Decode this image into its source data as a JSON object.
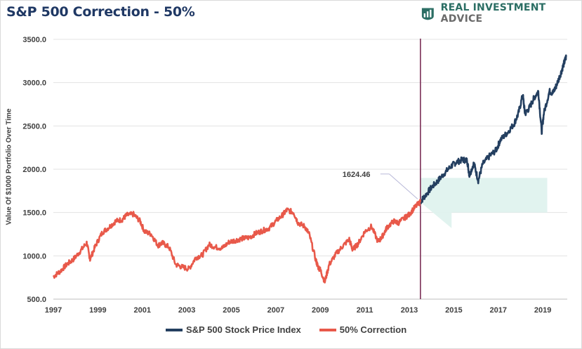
{
  "title": "S&P 500 Correction - 50%",
  "brand": {
    "part1": "REAL INVESTMENT ",
    "part2": "ADVICE",
    "icon": "chart-logo-icon",
    "color": "#2b6e64"
  },
  "chart_data": {
    "type": "line",
    "title": "S&P 500 Correction - 50%",
    "ylabel": "Value Of $1000 Portfolio Over Time",
    "xlabel": "",
    "ylim": [
      500,
      3500
    ],
    "xlim": [
      1997,
      2020.1
    ],
    "yticks": [
      "500.0",
      "1000.0",
      "1500.0",
      "2000.0",
      "2500.0",
      "3000.0",
      "3500.0"
    ],
    "ytick_values": [
      500,
      1000,
      1500,
      2000,
      2500,
      3000,
      3500
    ],
    "xticks": [
      "1997",
      "1999",
      "2001",
      "2003",
      "2005",
      "2007",
      "2009",
      "2011",
      "2013",
      "2015",
      "2017",
      "2019"
    ],
    "xtick_values": [
      1997,
      1999,
      2001,
      2003,
      2005,
      2007,
      2009,
      2011,
      2013,
      2015,
      2017,
      2019
    ],
    "grid": true,
    "legend_position": "bottom",
    "annotation": {
      "label": "1624.46",
      "x": 2013.5,
      "y": 1624.46
    },
    "vertical_line_x": 2013.5,
    "shaded_band": {
      "x": [
        2013.5,
        2019.2
      ],
      "y": [
        1500,
        1900
      ]
    },
    "series": [
      {
        "name": "S&P 500 Stock Price Index",
        "color": "#243f60",
        "x": [
          2013.5,
          2013.7,
          2014.0,
          2014.3,
          2014.6,
          2014.9,
          2015.1,
          2015.4,
          2015.6,
          2015.7,
          2015.9,
          2016.1,
          2016.3,
          2016.6,
          2016.9,
          2017.1,
          2017.4,
          2017.7,
          2017.9,
          2018.1,
          2018.2,
          2018.4,
          2018.6,
          2018.8,
          2018.95,
          2019.05,
          2019.3,
          2019.45,
          2019.6,
          2019.8,
          2019.95,
          2020.05
        ],
        "values": [
          1624,
          1690,
          1790,
          1870,
          1960,
          2040,
          2080,
          2110,
          2100,
          1930,
          2070,
          1870,
          2060,
          2150,
          2220,
          2340,
          2420,
          2520,
          2640,
          2860,
          2640,
          2710,
          2820,
          2900,
          2430,
          2650,
          2900,
          2880,
          2960,
          3100,
          3220,
          3300
        ]
      },
      {
        "name": "50% Correction",
        "color": "#e8594a",
        "x": [
          1997.0,
          1997.3,
          1997.6,
          1997.9,
          1998.2,
          1998.5,
          1998.65,
          1998.9,
          1999.2,
          1999.5,
          1999.8,
          2000.1,
          2000.3,
          2000.6,
          2000.9,
          2001.1,
          2001.4,
          2001.7,
          2001.9,
          2002.2,
          2002.5,
          2002.8,
          2003.1,
          2003.4,
          2003.7,
          2004.0,
          2004.3,
          2004.6,
          2004.9,
          2005.2,
          2005.5,
          2005.8,
          2006.1,
          2006.4,
          2006.7,
          2007.0,
          2007.3,
          2007.5,
          2007.8,
          2008.0,
          2008.3,
          2008.5,
          2008.8,
          2008.9,
          2009.0,
          2009.2,
          2009.4,
          2009.7,
          2010.0,
          2010.3,
          2010.45,
          2010.7,
          2011.0,
          2011.3,
          2011.6,
          2011.8,
          2012.0,
          2012.3,
          2012.5,
          2012.8,
          2013.0,
          2013.25,
          2013.5
        ],
        "values": [
          760,
          820,
          900,
          960,
          1050,
          1150,
          960,
          1120,
          1270,
          1330,
          1400,
          1420,
          1470,
          1480,
          1400,
          1280,
          1250,
          1120,
          1150,
          1100,
          900,
          870,
          850,
          980,
          1010,
          1130,
          1100,
          1090,
          1160,
          1180,
          1200,
          1210,
          1260,
          1290,
          1320,
          1400,
          1470,
          1530,
          1500,
          1380,
          1340,
          1250,
          950,
          870,
          840,
          700,
          900,
          1020,
          1110,
          1190,
          1070,
          1140,
          1280,
          1340,
          1160,
          1230,
          1330,
          1400,
          1380,
          1440,
          1480,
          1560,
          1624
        ]
      }
    ]
  }
}
